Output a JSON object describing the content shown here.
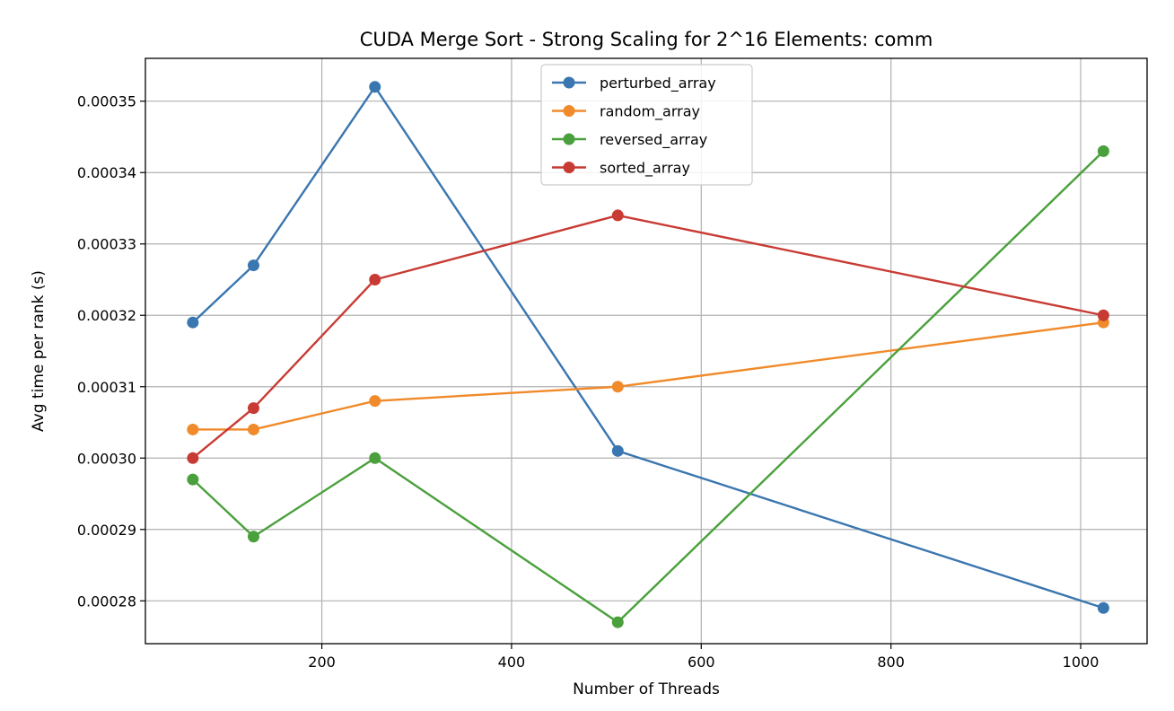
{
  "chart_data": {
    "type": "line",
    "title": "CUDA Merge Sort - Strong Scaling for 2^16 Elements: comm",
    "xlabel": "Number of Threads",
    "ylabel": "Avg time per rank (s)",
    "xlim": [
      14,
      1070
    ],
    "ylim": [
      0.000274,
      0.000356
    ],
    "xticks": [
      200,
      400,
      600,
      800,
      1000
    ],
    "xtick_labels": [
      "200",
      "400",
      "600",
      "800",
      "1000"
    ],
    "yticks": [
      0.00028,
      0.00029,
      0.0003,
      0.00031,
      0.00032,
      0.00033,
      0.00034,
      0.00035
    ],
    "ytick_labels": [
      "0.00028",
      "0.00029",
      "0.00030",
      "0.00031",
      "0.00032",
      "0.00033",
      "0.00034",
      "0.00035"
    ],
    "grid": true,
    "legend_position": "top-center",
    "x": [
      64,
      128,
      256,
      512,
      1024
    ],
    "series": [
      {
        "name": "perturbed_array",
        "color": "#3a76af",
        "values": [
          0.000319,
          0.000327,
          0.000352,
          0.000301,
          0.000279
        ]
      },
      {
        "name": "random_array",
        "color": "#f08a2a",
        "values": [
          0.000304,
          0.000304,
          0.000308,
          0.00031,
          0.000319
        ]
      },
      {
        "name": "reversed_array",
        "color": "#4aa03c",
        "values": [
          0.000297,
          0.000289,
          0.0003,
          0.000277,
          0.000343
        ]
      },
      {
        "name": "sorted_array",
        "color": "#c83b34",
        "values": [
          0.0003,
          0.000307,
          0.000325,
          0.000334,
          0.00032
        ]
      }
    ]
  }
}
